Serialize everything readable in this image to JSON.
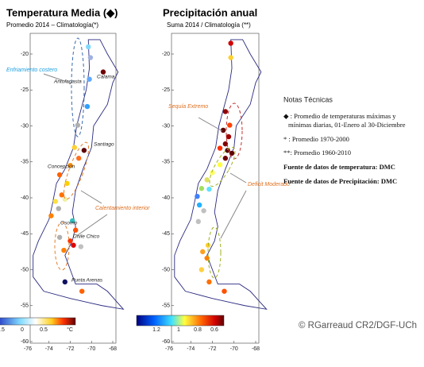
{
  "left_map": {
    "title": "Temperatura Media (◆)",
    "subtitle": "Promedio 2014 – Climatología(*)",
    "yticks": [
      -20,
      -25,
      -30,
      -35,
      -40,
      -45,
      -50,
      -55,
      -60
    ],
    "xticks": [
      -76,
      -74,
      -72,
      -70,
      -68
    ],
    "annotations": [
      "Enfriamiento costero",
      "Calentamiento interior"
    ],
    "places": [
      "Antofagasta",
      "Calama",
      "Santiago",
      "Concepción",
      "Osorno",
      "Chile Chico",
      "Punta Arenas"
    ],
    "colorbar_labels": [
      ".5",
      "0",
      "0.5",
      "°C"
    ]
  },
  "right_map": {
    "title": "Precipitación anual",
    "subtitle": "Suma 2014 / Climatología (**)",
    "yticks": [
      -20,
      -25,
      -30,
      -35,
      -40,
      -45,
      -50,
      -55,
      -60
    ],
    "xticks": [
      -76,
      -74,
      -72,
      -70,
      -68
    ],
    "annotations": [
      "Sequía Extremo",
      "Deficit Moderado"
    ],
    "colorbar_labels": [
      "1.2",
      "1",
      "0.8",
      "0.6"
    ]
  },
  "notes": {
    "title": "Notas Técnicas",
    "items": [
      "◆ : Promedio de temperaturas máximas y",
      "mínimas diarias, 01-Enero al 30-Diciembre",
      "* : Promedio 1970-2000",
      "**: Promedio 1960-2010",
      "Fuente de datos de temperatura: DMC",
      "Fuente de datos de Precipitación: DMC"
    ],
    "credit": "© RGarreaud CR2/DGF-UCh"
  }
}
